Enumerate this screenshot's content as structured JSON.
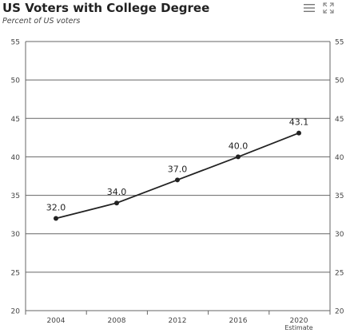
{
  "header": {
    "title": "US Voters with College Degree",
    "subtitle": "Percent of US voters"
  },
  "toolbar": {
    "menu_icon": "hamburger-menu-icon",
    "expand_icon": "fullscreen-expand-icon"
  },
  "colors": {
    "line": "#222222",
    "grid": "#666666",
    "axis_text": "#444444",
    "label_text": "#222222"
  },
  "chart_data": {
    "type": "line",
    "title": "US Voters with College Degree",
    "subtitle": "Percent of US voters",
    "categories": [
      "2004",
      "2008",
      "2012",
      "2016",
      "2020"
    ],
    "category_sublabels": [
      "",
      "",
      "",
      "",
      "Estimate"
    ],
    "series": [
      {
        "values": [
          32.0,
          34.0,
          37.0,
          40.0,
          43.1
        ],
        "labels": [
          "32.0",
          "34.0",
          "37.0",
          "40.0",
          "43.1"
        ]
      }
    ],
    "ylim": [
      20,
      55
    ],
    "yticks": [
      20,
      25,
      30,
      35,
      40,
      45,
      50,
      55
    ],
    "grid": true,
    "legend": "none"
  }
}
